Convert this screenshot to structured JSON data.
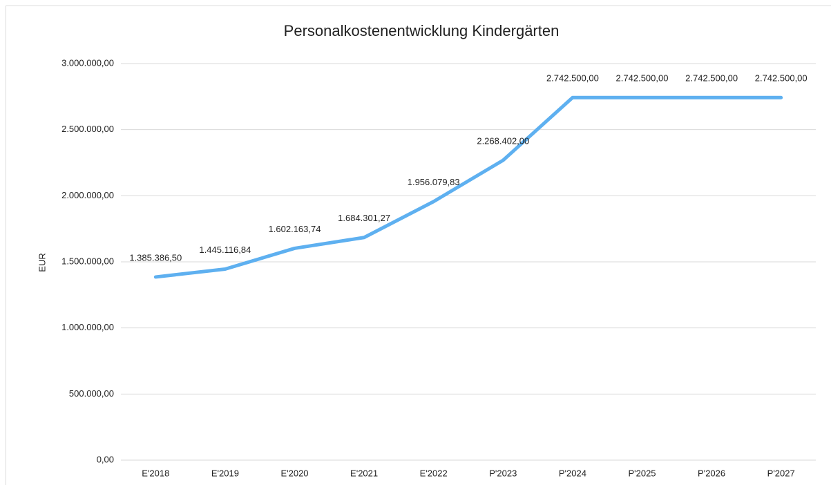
{
  "chart_data": {
    "type": "line",
    "title": "Personalkostenentwicklung Kindergärten",
    "y_label": "EUR",
    "categories": [
      "E'2018",
      "E'2019",
      "E'2020",
      "E'2021",
      "E'2022",
      "P'2023",
      "P'2024",
      "P'2025",
      "P'2026",
      "P'2027"
    ],
    "values": [
      1385386.5,
      1445116.84,
      1602163.74,
      1684301.27,
      1956079.83,
      2268402.0,
      2742500.0,
      2742500.0,
      2742500.0,
      2742500.0
    ],
    "value_labels": [
      "1.385.386,50",
      "1.445.116,84",
      "1.602.163,74",
      "1.684.301,27",
      "1.956.079,83",
      "2.268.402,00",
      "2.742.500,00",
      "2.742.500,00",
      "2.742.500,00",
      "2.742.500,00"
    ],
    "color": "#5eb0f0",
    "ylim": [
      0,
      3000000
    ],
    "yticks": [
      {
        "value": 0,
        "label": "0,00"
      },
      {
        "value": 500000,
        "label": "500.000,00"
      },
      {
        "value": 1000000,
        "label": "1.000.000,00"
      },
      {
        "value": 1500000,
        "label": "1.500.000,00"
      },
      {
        "value": 2000000,
        "label": "2.000.000,00"
      },
      {
        "value": 2500000,
        "label": "2.500.000,00"
      },
      {
        "value": 3000000,
        "label": "3.000.000,00"
      }
    ],
    "grid": true
  }
}
